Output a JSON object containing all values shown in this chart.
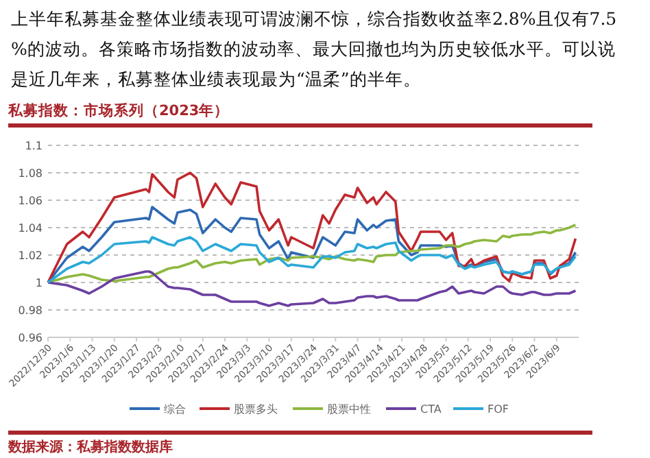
{
  "chart_data": {
    "type": "line",
    "title": "私募指数：市场系列（2023年）",
    "annotations": [
      "上半年私募基金整体业绩表现可谓波澜不惊，综合指数收益率2.8%且仅有7.5%的波动。各策略市场指数的波动率、最大回撤也均为历史较低水平。可以说是近几年来，私募整体业绩表现最为“温柔”的半年。",
      "数据来源：私募指数数据库"
    ],
    "x": [
      "2022-12-30",
      "2023-01-05",
      "2023-01-10",
      "2023-01-12",
      "2023-01-16",
      "2023-01-20",
      "2023-01-30",
      "2023-01-31",
      "2023-02-01",
      "2023-02-06",
      "2023-02-08",
      "2023-02-09",
      "2023-02-13",
      "2023-02-15",
      "2023-02-17",
      "2023-02-21",
      "2023-02-24",
      "2023-02-26",
      "2023-03-01",
      "2023-03-06",
      "2023-03-07",
      "2023-03-10",
      "2023-03-13",
      "2023-03-16",
      "2023-03-17",
      "2023-03-24",
      "2023-03-27",
      "2023-03-29",
      "2023-03-31",
      "2023-04-03",
      "2023-04-06",
      "2023-04-07",
      "2023-04-10",
      "2023-04-12",
      "2023-04-13",
      "2023-04-16",
      "2023-04-19",
      "2023-04-20",
      "2023-04-24",
      "2023-04-26",
      "2023-04-27",
      "2023-05-03",
      "2023-05-05",
      "2023-05-07",
      "2023-05-09",
      "2023-05-11",
      "2023-05-13",
      "2023-05-14",
      "2023-05-17",
      "2023-05-21",
      "2023-05-23",
      "2023-05-25",
      "2023-05-26",
      "2023-05-29",
      "2023-06-01",
      "2023-06-02",
      "2023-06-05",
      "2023-06-07",
      "2023-06-09",
      "2023-06-10",
      "2023-06-13",
      "2023-06-15"
    ],
    "series": [
      {
        "name": "综合",
        "color": "#2e6ab3",
        "values": [
          1,
          1.018,
          1.026,
          1.023,
          1.033,
          1.044,
          1.047,
          1.046,
          1.055,
          1.046,
          1.043,
          1.051,
          1.053,
          1.05,
          1.036,
          1.046,
          1.04,
          1.037,
          1.047,
          1.046,
          1.035,
          1.025,
          1.03,
          1.017,
          1.022,
          1.018,
          1.033,
          1.03,
          1.027,
          1.037,
          1.036,
          1.046,
          1.038,
          1.042,
          1.04,
          1.045,
          1.046,
          1.03,
          1.02,
          1.022,
          1.027,
          1.027,
          1.026,
          1.027,
          1.014,
          1.011,
          1.013,
          1.012,
          1.015,
          1.017,
          1.008,
          1.007,
          1.008,
          1.006,
          1.008,
          1.014,
          1.014,
          1.006,
          1.01,
          1.011,
          1.014,
          1.022
        ]
      },
      {
        "name": "股票多头",
        "color": "#c0282d",
        "values": [
          1,
          1.028,
          1.037,
          1.033,
          1.047,
          1.062,
          1.068,
          1.066,
          1.079,
          1.066,
          1.062,
          1.075,
          1.08,
          1.076,
          1.055,
          1.072,
          1.062,
          1.057,
          1.073,
          1.07,
          1.052,
          1.038,
          1.046,
          1.027,
          1.033,
          1.025,
          1.049,
          1.043,
          1.053,
          1.064,
          1.062,
          1.069,
          1.058,
          1.062,
          1.057,
          1.066,
          1.059,
          1.037,
          1.023,
          1.032,
          1.037,
          1.037,
          1.031,
          1.036,
          1.012,
          1.012,
          1.017,
          1.012,
          1.016,
          1.019,
          1.005,
          1.001,
          1.007,
          1.004,
          1.003,
          1.016,
          1.016,
          1.003,
          1.005,
          1.012,
          1.017,
          1.032
        ]
      },
      {
        "name": "股票中性",
        "color": "#8db840",
        "values": [
          1,
          1.004,
          1.006,
          1.005,
          1.002,
          1.001,
          1.004,
          1.004,
          1.005,
          1.01,
          1.011,
          1.011,
          1.014,
          1.016,
          1.011,
          1.014,
          1.015,
          1.014,
          1.016,
          1.017,
          1.013,
          1.017,
          1.018,
          1.016,
          1.018,
          1.019,
          1.018,
          1.017,
          1.019,
          1.017,
          1.016,
          1.017,
          1.016,
          1.015,
          1.019,
          1.02,
          1.02,
          1.022,
          1.023,
          1.023,
          1.024,
          1.025,
          1.027,
          1.027,
          1.026,
          1.028,
          1.029,
          1.03,
          1.031,
          1.03,
          1.034,
          1.033,
          1.034,
          1.035,
          1.035,
          1.036,
          1.037,
          1.036,
          1.038,
          1.038,
          1.04,
          1.042
        ]
      },
      {
        "name": "CTA",
        "color": "#6b3fa0",
        "values": [
          1,
          0.998,
          0.994,
          0.992,
          0.997,
          1.003,
          1.008,
          1.008,
          1.007,
          0.997,
          0.996,
          0.996,
          0.995,
          0.993,
          0.991,
          0.991,
          0.988,
          0.986,
          0.986,
          0.986,
          0.985,
          0.983,
          0.985,
          0.983,
          0.984,
          0.985,
          0.988,
          0.985,
          0.985,
          0.986,
          0.987,
          0.989,
          0.99,
          0.99,
          0.989,
          0.99,
          0.988,
          0.987,
          0.987,
          0.987,
          0.988,
          0.993,
          0.994,
          0.997,
          0.992,
          0.993,
          0.994,
          0.993,
          0.992,
          0.997,
          0.997,
          0.993,
          0.992,
          0.991,
          0.993,
          0.993,
          0.991,
          0.991,
          0.992,
          0.992,
          0.992,
          0.994
        ]
      },
      {
        "name": "FOF",
        "color": "#2aa9d8",
        "values": [
          1,
          1.01,
          1.015,
          1.014,
          1.02,
          1.028,
          1.03,
          1.029,
          1.033,
          1.028,
          1.027,
          1.03,
          1.033,
          1.03,
          1.023,
          1.028,
          1.025,
          1.023,
          1.028,
          1.027,
          1.022,
          1.015,
          1.018,
          1.012,
          1.013,
          1.011,
          1.019,
          1.019,
          1.018,
          1.022,
          1.023,
          1.028,
          1.025,
          1.026,
          1.025,
          1.028,
          1.029,
          1.023,
          1.016,
          1.019,
          1.02,
          1.02,
          1.018,
          1.02,
          1.013,
          1.01,
          1.012,
          1.011,
          1.013,
          1.015,
          1.008,
          1.007,
          1.008,
          1.006,
          1.008,
          1.013,
          1.013,
          1.007,
          1.01,
          1.011,
          1.013,
          1.019
        ]
      }
    ],
    "xlim": [
      "2022-12-30",
      "2023-06-16"
    ],
    "xticks": [
      {
        "value": "2022-12-30",
        "label": "2022/12/30"
      },
      {
        "value": "2023-01-06",
        "label": "2023/1/6"
      },
      {
        "value": "2023-01-13",
        "label": "2023/1/13"
      },
      {
        "value": "2023-01-20",
        "label": "2023/1/20"
      },
      {
        "value": "2023-01-27",
        "label": "2023/1/27"
      },
      {
        "value": "2023-02-03",
        "label": "2023/2/3"
      },
      {
        "value": "2023-02-10",
        "label": "2023/2/10"
      },
      {
        "value": "2023-02-17",
        "label": "2023/2/17"
      },
      {
        "value": "2023-02-24",
        "label": "2023/2/24"
      },
      {
        "value": "2023-03-03",
        "label": "2023/3/3"
      },
      {
        "value": "2023-03-10",
        "label": "2023/3/10"
      },
      {
        "value": "2023-03-17",
        "label": "2023/3/17"
      },
      {
        "value": "2023-03-24",
        "label": "2023/3/24"
      },
      {
        "value": "2023-03-31",
        "label": "2023/3/31"
      },
      {
        "value": "2023-04-07",
        "label": "2023/4/7"
      },
      {
        "value": "2023-04-14",
        "label": "2023/4/14"
      },
      {
        "value": "2023-04-21",
        "label": "2023/4/21"
      },
      {
        "value": "2023-04-28",
        "label": "2023/4/28"
      },
      {
        "value": "2023-05-05",
        "label": "2023/5/5"
      },
      {
        "value": "2023-05-12",
        "label": "2023/5/12"
      },
      {
        "value": "2023-05-19",
        "label": "2023/5/19"
      },
      {
        "value": "2023-05-26",
        "label": "2023/5/26"
      },
      {
        "value": "2023-06-02",
        "label": "2023/6/2"
      },
      {
        "value": "2023-06-09",
        "label": "2023/6/9"
      }
    ],
    "ylim": [
      0.96,
      1.1
    ],
    "yticks": [
      0.96,
      0.98,
      1,
      1.02,
      1.04,
      1.06,
      1.08,
      1.1
    ],
    "grid": "y",
    "legend": "bottom",
    "marker": "none",
    "line_style": "solid"
  }
}
